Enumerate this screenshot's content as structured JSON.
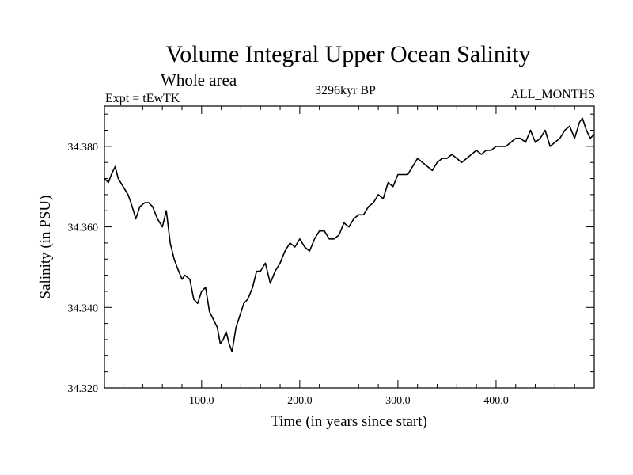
{
  "header": {
    "title": "Volume Integral Upper Ocean Salinity",
    "subtitle": "Whole area",
    "experiment": "Expt = tEwTK",
    "period": "3296kyr BP",
    "months": "ALL_MONTHS"
  },
  "chart_data": {
    "type": "line",
    "title": "Volume Integral Upper Ocean Salinity",
    "xlabel": "Time (in years since start)",
    "ylabel": "Salinity (in PSU)",
    "xlim": [
      1,
      500
    ],
    "ylim": [
      34.32,
      34.39
    ],
    "xticks": [
      100,
      200,
      300,
      400
    ],
    "xtick_labels": [
      "100.0",
      "200.0",
      "300.0",
      "400.0"
    ],
    "yticks": [
      34.32,
      34.34,
      34.36,
      34.38
    ],
    "ytick_labels": [
      "34.320",
      "34.340",
      "34.360",
      "34.380"
    ],
    "grid": false,
    "series": [
      {
        "name": "salinity",
        "x": [
          1,
          5,
          8,
          12,
          15,
          20,
          25,
          28,
          33,
          37,
          42,
          46,
          50,
          55,
          60,
          64,
          68,
          72,
          75,
          80,
          83,
          88,
          92,
          96,
          100,
          104,
          108,
          112,
          116,
          119,
          122,
          125,
          128,
          131,
          135,
          139,
          143,
          147,
          152,
          156,
          160,
          165,
          170,
          175,
          180,
          185,
          190,
          195,
          200,
          205,
          210,
          215,
          220,
          225,
          230,
          235,
          240,
          245,
          250,
          255,
          260,
          265,
          270,
          275,
          280,
          285,
          290,
          295,
          300,
          305,
          310,
          315,
          320,
          325,
          330,
          335,
          340,
          345,
          350,
          355,
          360,
          365,
          370,
          375,
          380,
          385,
          390,
          395,
          400,
          405,
          410,
          415,
          420,
          425,
          430,
          435,
          440,
          445,
          450,
          455,
          460,
          465,
          470,
          475,
          480,
          485,
          488,
          492,
          496,
          500
        ],
        "y": [
          34.372,
          34.371,
          34.373,
          34.375,
          34.372,
          34.37,
          34.368,
          34.366,
          34.362,
          34.365,
          34.366,
          34.366,
          34.365,
          34.362,
          34.36,
          34.364,
          34.356,
          34.352,
          34.35,
          34.347,
          34.348,
          34.347,
          34.342,
          34.341,
          34.344,
          34.345,
          34.339,
          34.337,
          34.335,
          34.331,
          34.332,
          34.334,
          34.331,
          34.329,
          34.335,
          34.338,
          34.341,
          34.342,
          34.345,
          34.349,
          34.349,
          34.351,
          34.346,
          34.349,
          34.351,
          34.354,
          34.356,
          34.355,
          34.357,
          34.355,
          34.354,
          34.357,
          34.359,
          34.359,
          34.357,
          34.357,
          34.358,
          34.361,
          34.36,
          34.362,
          34.363,
          34.363,
          34.365,
          34.366,
          34.368,
          34.367,
          34.371,
          34.37,
          34.373,
          34.373,
          34.373,
          34.375,
          34.377,
          34.376,
          34.375,
          34.374,
          34.376,
          34.377,
          34.377,
          34.378,
          34.377,
          34.376,
          34.377,
          34.378,
          34.379,
          34.378,
          34.379,
          34.379,
          34.38,
          34.38,
          34.38,
          34.381,
          34.382,
          34.382,
          34.381,
          34.384,
          34.381,
          34.382,
          34.384,
          34.38,
          34.381,
          34.382,
          34.384,
          34.385,
          34.382,
          34.386,
          34.387,
          34.384,
          34.382,
          34.383
        ]
      }
    ]
  }
}
